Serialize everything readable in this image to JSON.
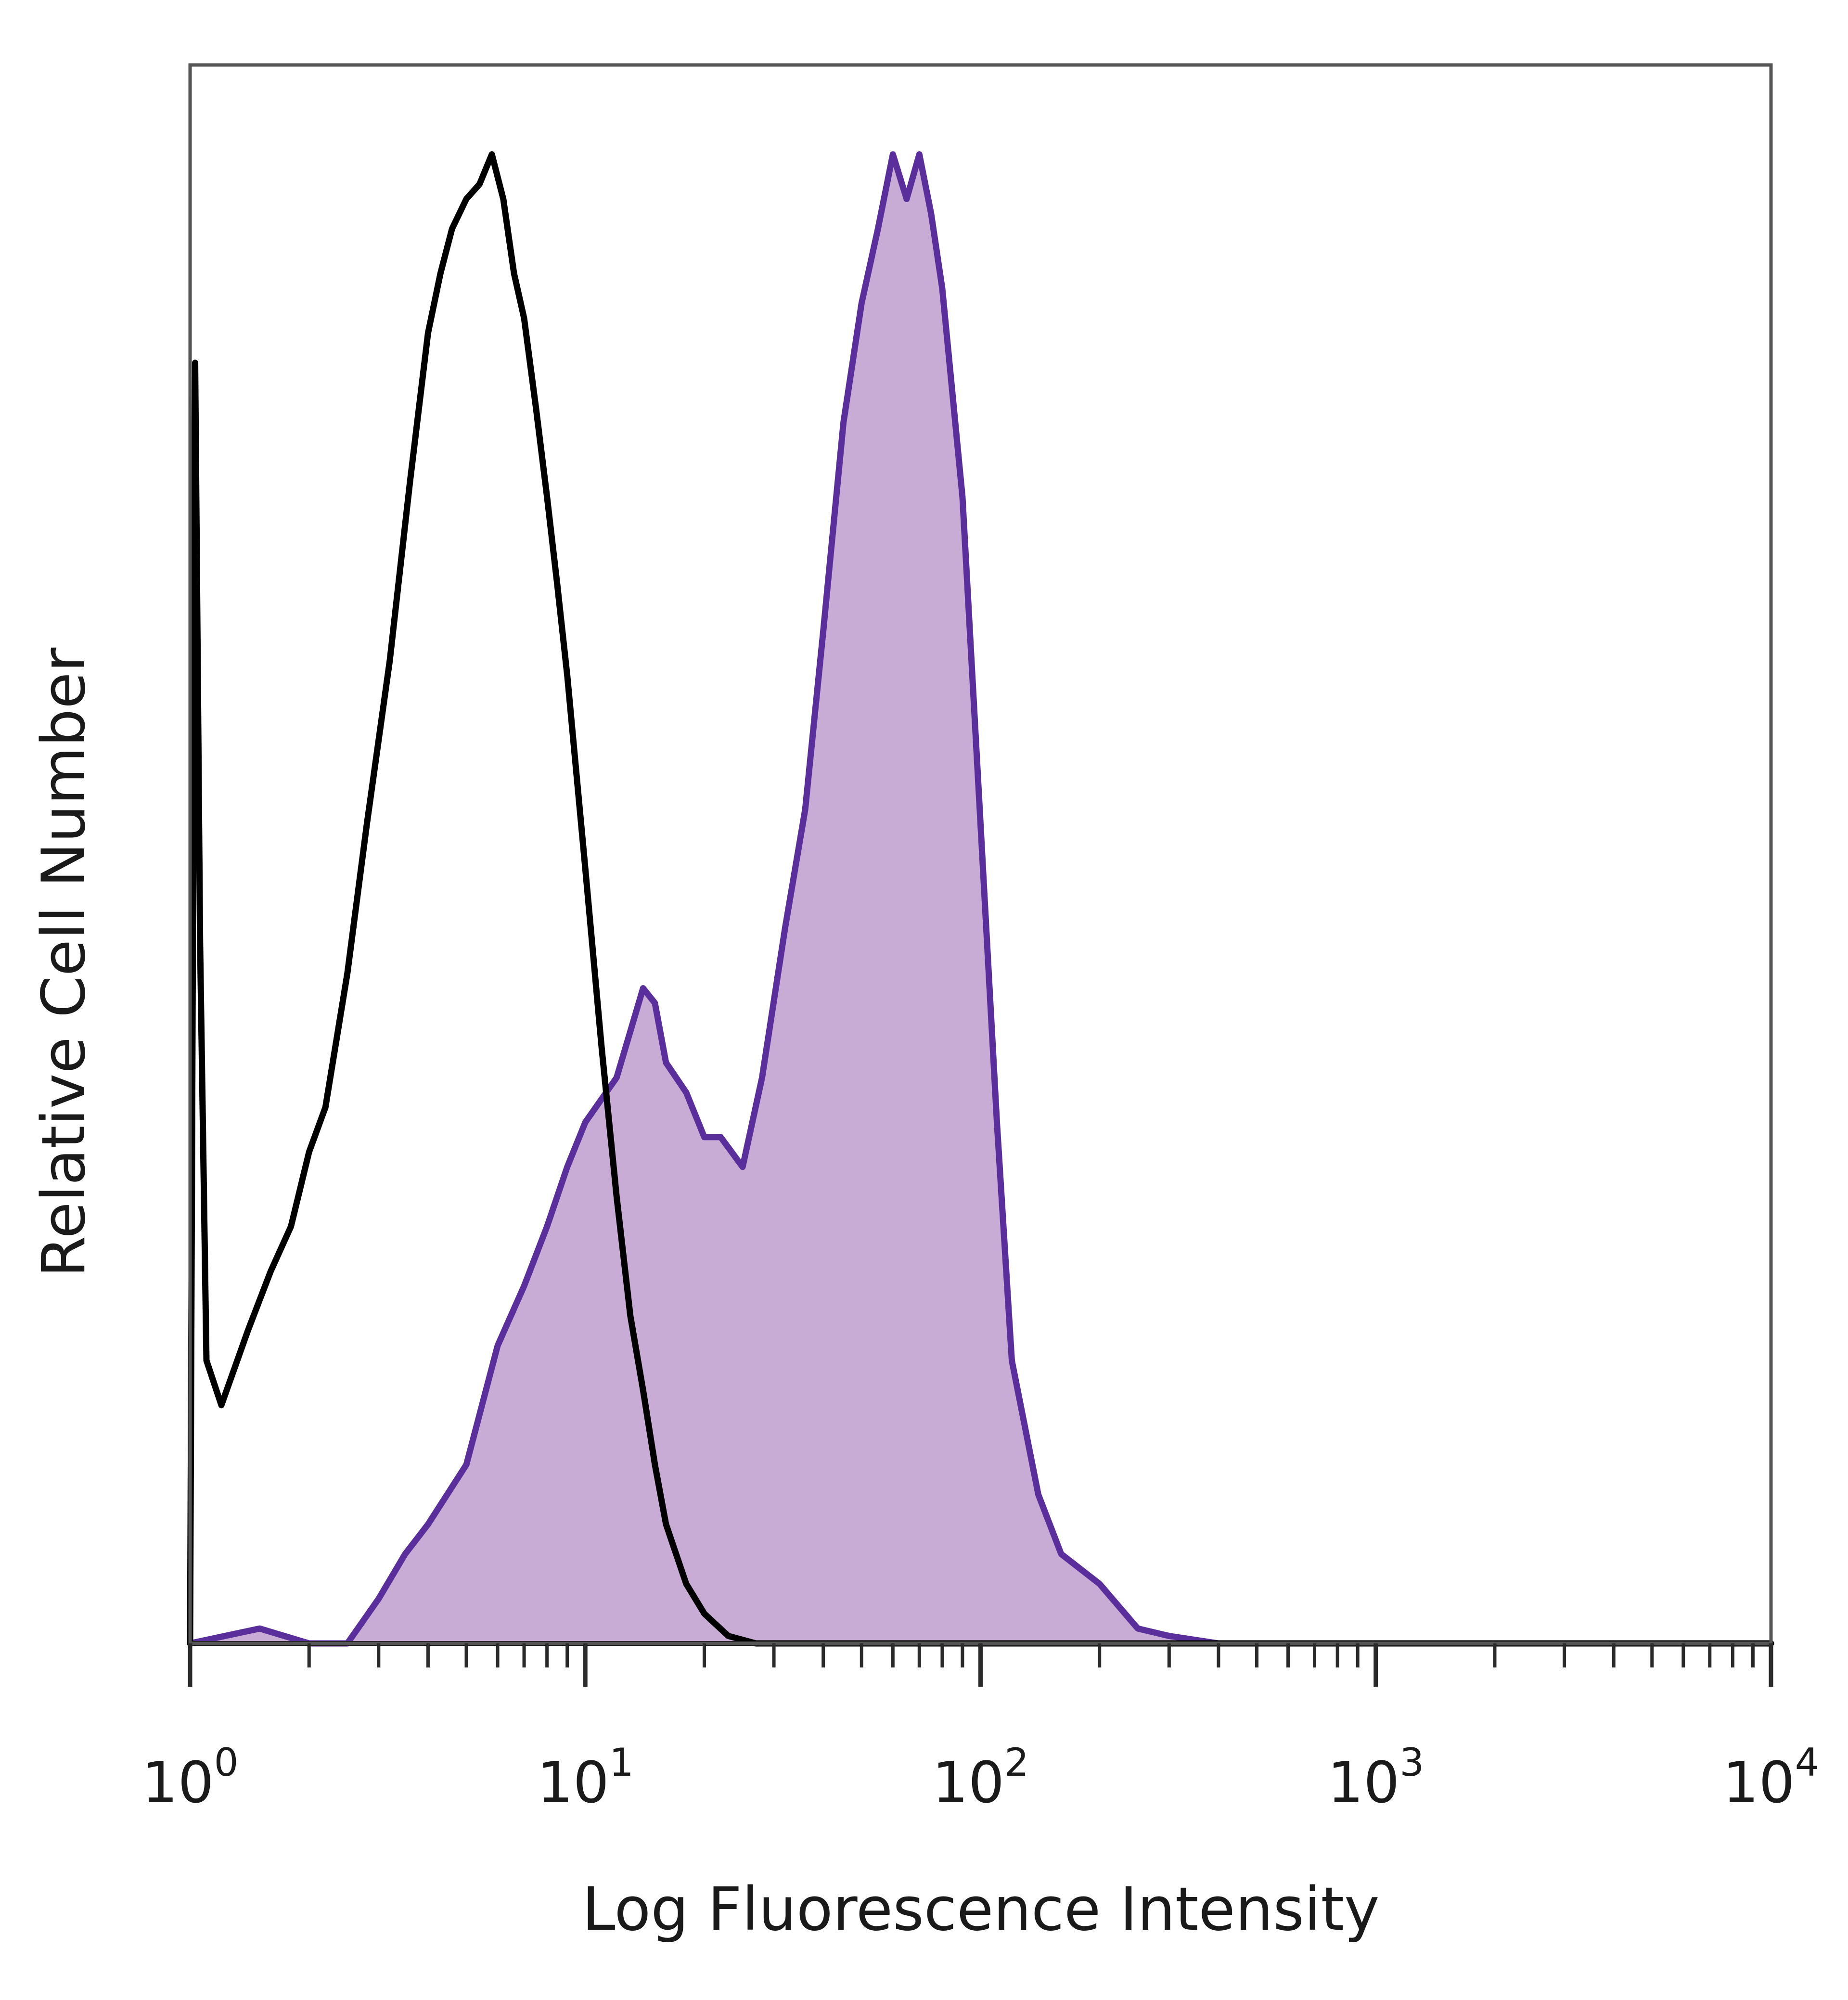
{
  "chart_data": {
    "type": "area",
    "title": "",
    "xlabel": "Log Fluorescence Intensity",
    "ylabel": "Relative Cell Number",
    "x_scale": "log",
    "xlim": [
      1,
      10000
    ],
    "ylim": [
      0,
      1.06
    ],
    "x_ticks": [
      {
        "base": "10",
        "exp": "0",
        "value": 1
      },
      {
        "base": "10",
        "exp": "1",
        "value": 10
      },
      {
        "base": "10",
        "exp": "2",
        "value": 100
      },
      {
        "base": "10",
        "exp": "3",
        "value": 1000
      },
      {
        "base": "10",
        "exp": "4",
        "value": 10000
      }
    ],
    "grid": false,
    "series": [
      {
        "style": "outline",
        "color": "#000000",
        "x": [
          1.0,
          1.03,
          1.06,
          1.1,
          1.2,
          1.4,
          1.6,
          1.8,
          2.0,
          2.2,
          2.5,
          2.8,
          3.2,
          3.6,
          4.0,
          4.3,
          4.6,
          5.0,
          5.4,
          5.8,
          6.2,
          6.6,
          7.0,
          7.5,
          8.0,
          8.5,
          9.0,
          10.0,
          11.0,
          12.0,
          13.0,
          14.0,
          15.0,
          16.0,
          18.0,
          20.0,
          23.0,
          27.0,
          35.0,
          10000.0
        ],
        "y": [
          0.0,
          0.86,
          0.47,
          0.19,
          0.16,
          0.21,
          0.25,
          0.28,
          0.33,
          0.36,
          0.45,
          0.55,
          0.66,
          0.78,
          0.88,
          0.92,
          0.95,
          0.97,
          0.98,
          1.0,
          0.97,
          0.92,
          0.89,
          0.83,
          0.77,
          0.71,
          0.65,
          0.52,
          0.4,
          0.3,
          0.22,
          0.17,
          0.12,
          0.08,
          0.04,
          0.02,
          0.005,
          0.0,
          0.0,
          0.0
        ]
      },
      {
        "style": "filled",
        "color": "#5a2f9b",
        "fill": "#c8acd5",
        "x": [
          1.0,
          1.5,
          2.0,
          2.5,
          3.0,
          3.5,
          4.0,
          5.0,
          6.0,
          7.0,
          8.0,
          9.0,
          10.0,
          12.0,
          14.0,
          15.0,
          16.0,
          18.0,
          20.0,
          22.0,
          25.0,
          28.0,
          32.0,
          36.0,
          40.0,
          45.0,
          50.0,
          55.0,
          60.0,
          65.0,
          70.0,
          75.0,
          80.0,
          90.0,
          100.0,
          110.0,
          120.0,
          140.0,
          160.0,
          200.0,
          250.0,
          300.0,
          400.0,
          10000.0
        ],
        "y": [
          0.0,
          0.01,
          0.0,
          0.0,
          0.03,
          0.06,
          0.08,
          0.12,
          0.2,
          0.24,
          0.28,
          0.32,
          0.35,
          0.38,
          0.44,
          0.43,
          0.39,
          0.37,
          0.34,
          0.34,
          0.32,
          0.38,
          0.48,
          0.56,
          0.68,
          0.82,
          0.9,
          0.95,
          1.0,
          0.97,
          1.0,
          0.96,
          0.91,
          0.77,
          0.55,
          0.35,
          0.19,
          0.1,
          0.06,
          0.04,
          0.01,
          0.005,
          0.0,
          0.0
        ]
      }
    ]
  }
}
